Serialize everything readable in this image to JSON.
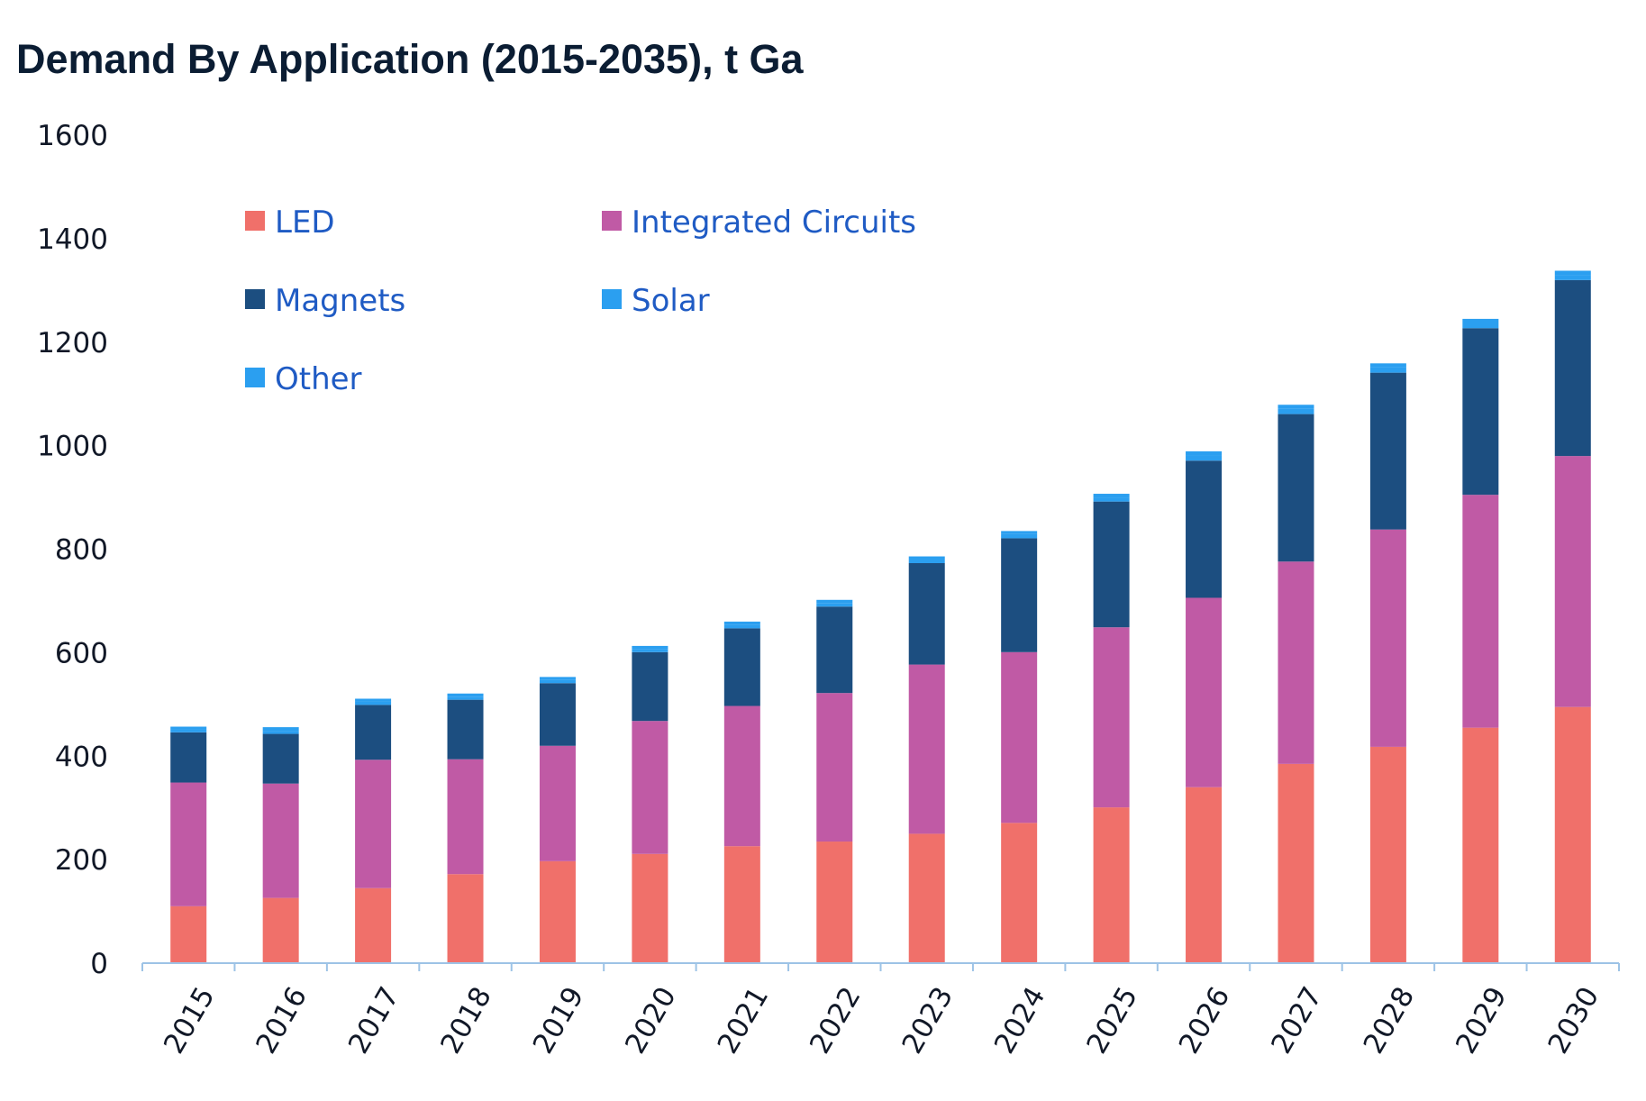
{
  "chart_data": {
    "type": "bar",
    "stacked": true,
    "title": "Demand By Application (2015-2035), t Ga",
    "xlabel": "",
    "ylabel": "",
    "ylim": [
      0,
      1600
    ],
    "yticks": [
      0,
      200,
      400,
      600,
      800,
      1000,
      1200,
      1400,
      1600
    ],
    "categories": [
      "2015",
      "2016",
      "2017",
      "2018",
      "2019",
      "2020",
      "2021",
      "2022",
      "2023",
      "2024",
      "2025",
      "2026",
      "2027",
      "2028",
      "2029",
      "2030"
    ],
    "series": [
      {
        "name": "LED",
        "color": "#f0706a",
        "values": [
          110,
          126,
          145,
          172,
          197,
          211,
          226,
          235,
          250,
          271,
          301,
          340,
          385,
          418,
          455,
          495
        ]
      },
      {
        "name": "Integrated Circuits",
        "color": "#c05aa5",
        "values": [
          239,
          221,
          248,
          222,
          223,
          257,
          271,
          287,
          327,
          330,
          348,
          366,
          391,
          420,
          450,
          485
        ]
      },
      {
        "name": "Magnets",
        "color": "#1c4e80",
        "values": [
          97,
          96,
          106,
          115,
          121,
          133,
          150,
          167,
          196,
          220,
          243,
          265,
          285,
          303,
          322,
          340
        ]
      },
      {
        "name": "Solar",
        "color": "#2b9ff0",
        "values": [
          5,
          6,
          6,
          6,
          6,
          6,
          7,
          7,
          7,
          8,
          8,
          10,
          10,
          10,
          10,
          10
        ]
      },
      {
        "name": "Other",
        "color": "#2b9ff0",
        "values": [
          6,
          7,
          6,
          6,
          6,
          6,
          6,
          6,
          6,
          6,
          7,
          8,
          8,
          8,
          8,
          8
        ]
      }
    ],
    "legend": {
      "placement": "top-left",
      "items": [
        "LED",
        "Integrated Circuits",
        "Magnets",
        "Solar",
        "Other"
      ]
    },
    "axis_color": "#9dc3e6",
    "grid": false
  }
}
